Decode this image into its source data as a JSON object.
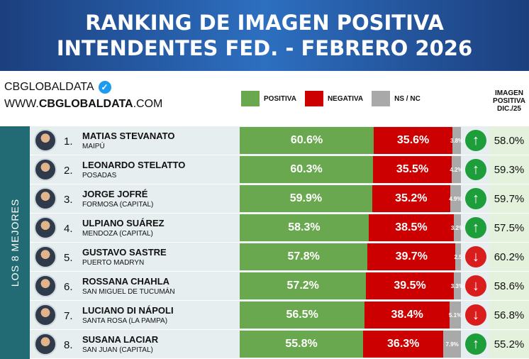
{
  "title": {
    "line1": "RANKING DE IMAGEN POSITIVA",
    "line2": "INTENDENTES FED. - FEBRERO 2026"
  },
  "brand": {
    "name": "CBGLOBALDATA",
    "badge_icon": "verified-check-icon",
    "url_prefix": "WWW.",
    "url_bold": "CBGLOBALDATA",
    "url_suffix": ".COM"
  },
  "legend": {
    "positiva": "POSITIVA",
    "negativa": "NEGATIVA",
    "nsnc": "NS / NC"
  },
  "side_label": "LOS 8 MEJORES",
  "column_header": {
    "line1": "IMAGEN",
    "line2": "POSITIVA",
    "line3": "DIC./25"
  },
  "colors": {
    "positiva": "#6aa84f",
    "negativa": "#cc0000",
    "nsnc": "#a9a9a9",
    "arrow_up": "#1e9e3a",
    "arrow_down": "#d91c1c"
  },
  "chart_data": {
    "type": "bar",
    "stacked": true,
    "orientation": "horizontal",
    "title": "RANKING DE IMAGEN POSITIVA INTENDENTES FED. - FEBRERO 2026",
    "series_names": [
      "POSITIVA",
      "NEGATIVA",
      "NS / NC"
    ],
    "rows": [
      {
        "rank": "1.",
        "name": "MATIAS STEVANATO",
        "city": "MAIPÚ",
        "positiva": 60.6,
        "positiva_label": "60.6%",
        "negativa": 35.6,
        "negativa_label": "35.6%",
        "nsnc": 3.8,
        "nsnc_label": "3.8%",
        "trend": "up",
        "prev_label": "58.0%"
      },
      {
        "rank": "2.",
        "name": "LEONARDO STELATTO",
        "city": "POSADAS",
        "positiva": 60.3,
        "positiva_label": "60.3%",
        "negativa": 35.5,
        "negativa_label": "35.5%",
        "nsnc": 4.2,
        "nsnc_label": "4.2%",
        "trend": "up",
        "prev_label": "59.3%"
      },
      {
        "rank": "3.",
        "name": "JORGE JOFRÉ",
        "city": "FORMOSA (CAPITAL)",
        "positiva": 59.9,
        "positiva_label": "59.9%",
        "negativa": 35.2,
        "negativa_label": "35.2%",
        "nsnc": 4.9,
        "nsnc_label": "4.9%",
        "trend": "up",
        "prev_label": "59.7%"
      },
      {
        "rank": "4.",
        "name": "ULPIANO SUÁREZ",
        "city": "MENDOZA (CAPITAL)",
        "positiva": 58.3,
        "positiva_label": "58.3%",
        "negativa": 38.5,
        "negativa_label": "38.5%",
        "nsnc": 3.2,
        "nsnc_label": "3.2%",
        "trend": "up",
        "prev_label": "57.5%"
      },
      {
        "rank": "5.",
        "name": "GUSTAVO SASTRE",
        "city": "PUERTO MADRYN",
        "positiva": 57.8,
        "positiva_label": "57.8%",
        "negativa": 39.7,
        "negativa_label": "39.7%",
        "nsnc": 2.5,
        "nsnc_label": "2.5",
        "trend": "down",
        "prev_label": "60.2%"
      },
      {
        "rank": "6.",
        "name": "ROSSANA CHAHLA",
        "city": "SAN MIGUEL DE TUCUMÁN",
        "positiva": 57.2,
        "positiva_label": "57.2%",
        "negativa": 39.5,
        "negativa_label": "39.5%",
        "nsnc": 3.3,
        "nsnc_label": "3.3%",
        "trend": "down",
        "prev_label": "58.6%"
      },
      {
        "rank": "7.",
        "name": "LUCIANO DI NÁPOLI",
        "city": "SANTA ROSA (LA PAMPA)",
        "positiva": 56.5,
        "positiva_label": "56.5%",
        "negativa": 38.4,
        "negativa_label": "38.4%",
        "nsnc": 5.1,
        "nsnc_label": "5.1%",
        "trend": "down",
        "prev_label": "56.8%"
      },
      {
        "rank": "8.",
        "name": "SUSANA LACIAR",
        "city": "SAN JUAN (CAPITAL)",
        "positiva": 55.8,
        "positiva_label": "55.8%",
        "negativa": 36.3,
        "negativa_label": "36.3%",
        "nsnc": 7.9,
        "nsnc_label": "7.9%",
        "trend": "up",
        "prev_label": "55.2%"
      }
    ]
  }
}
